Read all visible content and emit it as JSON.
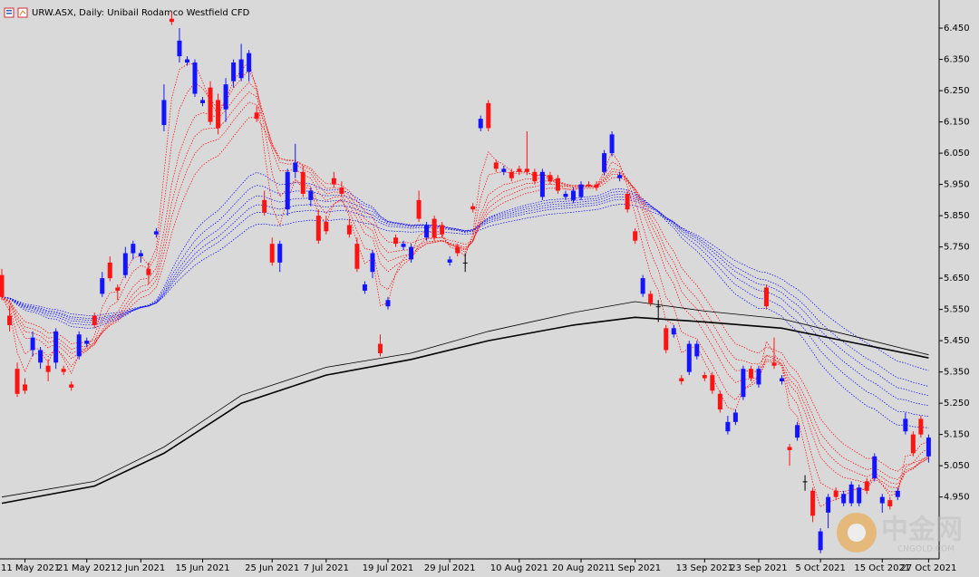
{
  "chart_data": {
    "type": "candlestick",
    "title": "URW.ASX, Daily:  Unibail Rodamco Westfield CFD",
    "categories": [
      null,
      null,
      null,
      "11 May 2021",
      null,
      null,
      null,
      null,
      null,
      null,
      null,
      "21 May 2021",
      null,
      null,
      null,
      null,
      null,
      null,
      "2 Jun 2021",
      null,
      null,
      null,
      null,
      null,
      null,
      null,
      "15 Jun 2021",
      null,
      null,
      null,
      null,
      null,
      null,
      null,
      null,
      "25 Jun 2021",
      null,
      null,
      null,
      null,
      null,
      null,
      "7 Jul 2021",
      null,
      null,
      null,
      null,
      null,
      null,
      null,
      "19 Jul 2021",
      null,
      null,
      null,
      null,
      null,
      null,
      null,
      "29 Jul 2021",
      null,
      null,
      null,
      null,
      null,
      null,
      null,
      null,
      "10 Aug 2021",
      null,
      null,
      null,
      null,
      null,
      null,
      null,
      "20 Aug 2021",
      null,
      null,
      null,
      null,
      null,
      null,
      "1 Sep 2021",
      null,
      null,
      null,
      null,
      null,
      null,
      null,
      null,
      "13 Sep 2021",
      null,
      null,
      null,
      null,
      null,
      null,
      "23 Sep 2021",
      null,
      null,
      null,
      null,
      null,
      null,
      null,
      "5 Oct 2021",
      null,
      null,
      null,
      null,
      null,
      null,
      null,
      "15 Oct 2021",
      null,
      null,
      null,
      null,
      null,
      "27 Oct 2021"
    ],
    "open": [
      5.66,
      5.53,
      5.36,
      5.31,
      5.42,
      5.38,
      5.37,
      5.38,
      5.36,
      5.31,
      5.4,
      5.44,
      5.53,
      5.6,
      5.7,
      5.62,
      5.66,
      5.73,
      5.72,
      5.68,
      5.79,
      6.14,
      6.48,
      6.36,
      6.34,
      6.24,
      6.21,
      6.26,
      6.22,
      6.19,
      6.28,
      6.29,
      6.31,
      6.18,
      5.9,
      5.76,
      5.7,
      5.87,
      5.99,
      5.99,
      5.9,
      5.85,
      5.83,
      5.97,
      5.94,
      5.82,
      5.76,
      5.61,
      5.67,
      5.44,
      5.56,
      5.78,
      5.75,
      5.71,
      5.9,
      5.78,
      5.84,
      5.82,
      5.7,
      5.75,
      5.7,
      5.88,
      6.13,
      6.21,
      6.02,
      5.99,
      5.99,
      6.0,
      6.0,
      5.99,
      5.91,
      5.98,
      5.97,
      5.91,
      5.9,
      5.91,
      5.95,
      5.95,
      5.99,
      6.05,
      5.97,
      5.92,
      5.8,
      5.6,
      5.6,
      5.56,
      5.49,
      5.47,
      5.33,
      5.35,
      5.4,
      5.34,
      5.34,
      5.28,
      5.16,
      5.19,
      5.27,
      5.36,
      5.31,
      5.62,
      5.38,
      5.32,
      5.11,
      5.14,
      5.0,
      4.97,
      4.78,
      4.9,
      4.97,
      4.93,
      4.93,
      4.93,
      5.0,
      5.01,
      4.93,
      4.94,
      4.95,
      5.16,
      5.15,
      5.2,
      5.08
    ],
    "high": [
      5.68,
      5.56,
      5.38,
      5.33,
      5.48,
      5.43,
      5.39,
      5.49,
      5.37,
      5.32,
      5.48,
      5.46,
      5.54,
      5.67,
      5.72,
      5.63,
      5.75,
      5.77,
      5.74,
      5.7,
      5.81,
      6.27,
      6.5,
      6.45,
      6.36,
      6.35,
      6.23,
      6.28,
      6.24,
      6.29,
      6.35,
      6.4,
      6.38,
      6.2,
      5.93,
      5.78,
      5.77,
      6.0,
      6.08,
      6.01,
      5.94,
      5.87,
      5.85,
      5.99,
      5.96,
      5.84,
      5.78,
      5.64,
      5.74,
      5.47,
      5.59,
      5.79,
      5.77,
      5.76,
      5.93,
      5.83,
      5.85,
      5.83,
      5.72,
      5.76,
      5.73,
      5.89,
      6.17,
      6.22,
      6.03,
      6.01,
      6.0,
      6.01,
      6.12,
      6.0,
      6.0,
      5.99,
      5.98,
      5.93,
      5.94,
      5.96,
      5.96,
      5.96,
      6.06,
      6.12,
      5.99,
      5.93,
      5.81,
      5.66,
      5.61,
      5.58,
      5.5,
      5.5,
      5.34,
      5.45,
      5.45,
      5.35,
      5.35,
      5.29,
      5.21,
      5.23,
      5.37,
      5.37,
      5.37,
      5.63,
      5.46,
      5.34,
      5.12,
      5.19,
      5.02,
      4.98,
      4.85,
      4.96,
      4.98,
      4.97,
      5.0,
      4.99,
      5.01,
      5.09,
      4.96,
      4.95,
      4.98,
      5.22,
      5.16,
      5.21,
      5.15
    ],
    "low": [
      5.58,
      5.48,
      5.27,
      5.28,
      5.4,
      5.36,
      5.32,
      5.36,
      5.34,
      5.29,
      5.39,
      5.43,
      5.49,
      5.59,
      5.64,
      5.58,
      5.65,
      5.71,
      5.7,
      5.63,
      5.78,
      6.12,
      6.46,
      6.34,
      6.33,
      6.23,
      6.2,
      6.14,
      6.11,
      6.15,
      6.26,
      6.28,
      6.28,
      6.15,
      5.85,
      5.69,
      5.67,
      5.85,
      5.97,
      5.91,
      5.88,
      5.76,
      5.79,
      5.94,
      5.91,
      5.78,
      5.67,
      5.6,
      5.65,
      5.4,
      5.55,
      5.75,
      5.74,
      5.7,
      5.83,
      5.77,
      5.77,
      5.78,
      5.69,
      5.72,
      5.67,
      5.86,
      6.12,
      6.12,
      5.99,
      5.98,
      5.96,
      5.98,
      5.98,
      5.95,
      5.9,
      5.95,
      5.92,
      5.9,
      5.89,
      5.9,
      5.94,
      5.93,
      5.98,
      6.04,
      5.96,
      5.86,
      5.76,
      5.59,
      5.56,
      5.51,
      5.41,
      5.46,
      5.31,
      5.34,
      5.39,
      5.32,
      5.28,
      5.22,
      5.15,
      5.18,
      5.26,
      5.32,
      5.3,
      5.55,
      5.36,
      5.31,
      5.05,
      5.13,
      4.97,
      4.87,
      4.77,
      4.85,
      4.94,
      4.92,
      4.92,
      4.92,
      4.96,
      5.0,
      4.9,
      4.91,
      4.94,
      5.15,
      5.08,
      5.14,
      5.06
    ],
    "close": [
      5.59,
      5.5,
      5.28,
      5.29,
      5.46,
      5.42,
      5.35,
      5.48,
      5.35,
      5.3,
      5.47,
      5.45,
      5.5,
      5.65,
      5.65,
      5.61,
      5.73,
      5.76,
      5.73,
      5.66,
      5.8,
      6.22,
      6.47,
      6.41,
      6.35,
      6.34,
      6.22,
      6.15,
      6.13,
      6.27,
      6.34,
      6.35,
      6.37,
      6.16,
      5.86,
      5.7,
      5.76,
      5.99,
      6.02,
      5.92,
      5.93,
      5.77,
      5.8,
      5.95,
      5.92,
      5.79,
      5.68,
      5.63,
      5.73,
      5.41,
      5.58,
      5.76,
      5.76,
      5.75,
      5.84,
      5.82,
      5.78,
      5.79,
      5.71,
      5.73,
      5.7,
      5.87,
      6.16,
      6.13,
      6.0,
      6.0,
      5.97,
      5.99,
      5.99,
      5.96,
      5.99,
      5.96,
      5.93,
      5.92,
      5.93,
      5.95,
      5.945,
      5.94,
      6.05,
      6.11,
      5.98,
      5.87,
      5.77,
      5.65,
      5.57,
      5.56,
      5.42,
      5.49,
      5.32,
      5.44,
      5.44,
      5.33,
      5.29,
      5.23,
      5.19,
      5.22,
      5.36,
      5.33,
      5.36,
      5.56,
      5.37,
      5.33,
      5.1,
      5.18,
      5.0,
      4.89,
      4.84,
      4.95,
      4.95,
      4.96,
      4.99,
      4.98,
      4.97,
      5.08,
      4.95,
      4.92,
      4.97,
      5.2,
      5.09,
      5.15,
      5.14
    ],
    "up_color": "#1414ff",
    "down_color": "#ff1414",
    "doji_color": "#000000",
    "ylim": [
      4.752,
      6.54
    ],
    "yticks": [
      {
        "value": 6.45,
        "label": "6.450"
      },
      {
        "value": 6.35,
        "label": "6.350"
      },
      {
        "value": 6.25,
        "label": "6.250"
      },
      {
        "value": 6.15,
        "label": "6.150"
      },
      {
        "value": 6.05,
        "label": "6.050"
      },
      {
        "value": 5.95,
        "label": "5.950"
      },
      {
        "value": 5.85,
        "label": "5.850"
      },
      {
        "value": 5.75,
        "label": "5.750"
      },
      {
        "value": 5.65,
        "label": "5.650"
      },
      {
        "value": 5.55,
        "label": "5.550"
      },
      {
        "value": 5.45,
        "label": "5.450"
      },
      {
        "value": 5.35,
        "label": "5.350"
      },
      {
        "value": 5.25,
        "label": "5.250"
      },
      {
        "value": 5.15,
        "label": "5.150"
      },
      {
        "value": 5.05,
        "label": "5.050"
      },
      {
        "value": 4.95,
        "label": "4.950"
      }
    ],
    "short_ema_periods": [
      3,
      5,
      8,
      10,
      12,
      15
    ],
    "short_ema_color": "#ff0000",
    "long_ema_periods": [
      30,
      35,
      40,
      45,
      50,
      60
    ],
    "long_ema_color": "#0000ff",
    "lines": [
      {
        "color": "#000000",
        "width": 1.6,
        "x": [
          0,
          12,
          21,
          31,
          42,
          53,
          63,
          74,
          82,
          91,
          101,
          111,
          120
        ],
        "values": [
          4.93,
          4.985,
          5.09,
          5.25,
          5.34,
          5.39,
          5.45,
          5.5,
          5.525,
          5.51,
          5.49,
          5.44,
          5.395
        ]
      },
      {
        "color": "#000000",
        "width": 0.8,
        "x": [
          0,
          12,
          21,
          31,
          42,
          53,
          63,
          74,
          82,
          91,
          101,
          111,
          120
        ],
        "values": [
          4.95,
          5.0,
          5.11,
          5.275,
          5.365,
          5.41,
          5.48,
          5.54,
          5.575,
          5.545,
          5.52,
          5.46,
          5.405
        ]
      }
    ]
  },
  "watermark": {
    "logo": "中金网",
    "site": "CNGOLD.COM"
  }
}
